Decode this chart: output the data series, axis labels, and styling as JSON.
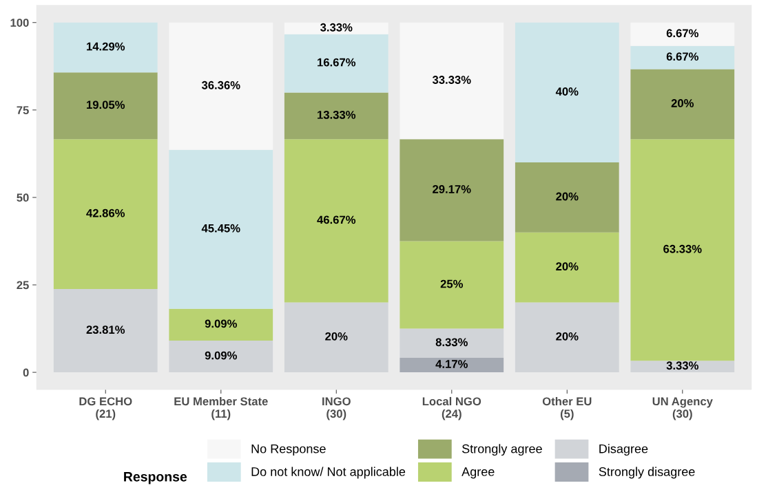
{
  "chart_data": {
    "type": "bar",
    "stacked": true,
    "categories": [
      "DG ECHO\n(21)",
      "EU Member State\n(11)",
      "INGO\n(30)",
      "Local NGO\n(24)",
      "Other EU\n(5)",
      "UN Agency\n(30)"
    ],
    "series": [
      {
        "name": "Strongly disagree",
        "color": "#a5aab3",
        "values": [
          0,
          0,
          0,
          4.17,
          0,
          0
        ],
        "value_labels": [
          null,
          null,
          null,
          "4.17%",
          null,
          null
        ]
      },
      {
        "name": "Disagree",
        "color": "#d1d4d8",
        "values": [
          23.81,
          9.09,
          20,
          8.33,
          20,
          3.33
        ],
        "value_labels": [
          "23.81%",
          "9.09%",
          "20%",
          "8.33%",
          "20%",
          "3.33%"
        ]
      },
      {
        "name": "Agree",
        "color": "#b9d271",
        "values": [
          42.86,
          9.09,
          46.67,
          25,
          20,
          63.33
        ],
        "value_labels": [
          "42.86%",
          "9.09%",
          "46.67%",
          "25%",
          "20%",
          "63.33%"
        ]
      },
      {
        "name": "Strongly agree",
        "color": "#9bab6b",
        "values": [
          19.05,
          0,
          13.33,
          29.17,
          20,
          20
        ],
        "value_labels": [
          "19.05%",
          null,
          "13.33%",
          "29.17%",
          "20%",
          "20%"
        ]
      },
      {
        "name": "Do not know/ Not applicable",
        "color": "#cde6ea",
        "values": [
          14.29,
          45.45,
          16.67,
          0,
          40,
          6.67
        ],
        "value_labels": [
          "14.29%",
          "45.45%",
          "16.67%",
          null,
          "40%",
          "6.67%"
        ]
      },
      {
        "name": "No Response",
        "color": "#f7f7f7",
        "values": [
          0,
          36.36,
          3.33,
          33.33,
          0,
          6.67
        ],
        "value_labels": [
          null,
          "36.36%",
          "3.33%",
          "33.33%",
          null,
          "6.67%"
        ]
      }
    ],
    "ylim": [
      -5,
      105
    ],
    "yticks": [
      0,
      25,
      50,
      75,
      100
    ],
    "grid": false,
    "legend": "bottom",
    "legend_title": "Response"
  }
}
